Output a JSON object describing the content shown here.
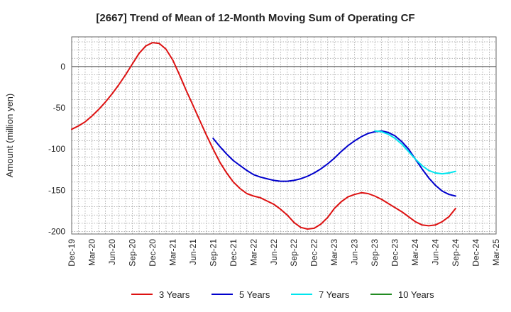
{
  "chart_data": {
    "type": "line",
    "title": "[2667]  Trend of Mean of 12-Month Moving Sum of Operating CF",
    "xlabel": "",
    "ylabel": "Amount (million yen)",
    "ylim": [
      -203,
      36
    ],
    "yticks": [
      0,
      -50,
      -100,
      -150,
      -200
    ],
    "xticks": [
      "Dec-19",
      "Mar-20",
      "Jun-20",
      "Sep-20",
      "Dec-20",
      "Mar-21",
      "Jun-21",
      "Sep-21",
      "Dec-21",
      "Mar-22",
      "Jun-22",
      "Sep-22",
      "Dec-22",
      "Mar-23",
      "Jun-23",
      "Sep-23",
      "Dec-23",
      "Mar-24",
      "Jun-24",
      "Sep-24",
      "Dec-24",
      "Mar-25"
    ],
    "grid": true,
    "legend_position": "bottom",
    "series": [
      {
        "name": "3 Years",
        "color": "#dd1111",
        "start_index": 0,
        "values": [
          -76,
          -72,
          -67,
          -60,
          -52,
          -43,
          -33,
          -22,
          -10,
          3,
          16,
          25,
          29,
          28,
          21,
          8,
          -10,
          -29,
          -47,
          -65,
          -83,
          -100,
          -116,
          -129,
          -140,
          -148,
          -154,
          -157,
          -159,
          -163,
          -167,
          -173,
          -180,
          -189,
          -195,
          -197,
          -196,
          -191,
          -183,
          -172,
          -164,
          -158,
          -155,
          -153,
          -154,
          -157,
          -161,
          -166,
          -171,
          -176,
          -182,
          -188,
          -192,
          -193,
          -192,
          -188,
          -182,
          -172
        ]
      },
      {
        "name": "5 Years",
        "color": "#0000cc",
        "start_index": 21,
        "values": [
          -87,
          -97,
          -106,
          -114,
          -120,
          -126,
          -131,
          -134,
          -136,
          -138,
          -139,
          -139,
          -138,
          -136,
          -133,
          -129,
          -124,
          -118,
          -111,
          -103,
          -96,
          -90,
          -85,
          -81,
          -79,
          -78,
          -80,
          -84,
          -91,
          -100,
          -112,
          -124,
          -135,
          -144,
          -151,
          -155,
          -157
        ]
      },
      {
        "name": "7 Years",
        "color": "#00e5ee",
        "start_index": 45,
        "values": [
          -78,
          -79,
          -82,
          -87,
          -94,
          -103,
          -112,
          -120,
          -126,
          -129,
          -130,
          -129,
          -127
        ]
      },
      {
        "name": "10 Years",
        "color": "#228b22",
        "start_index": 0,
        "values": []
      }
    ]
  }
}
